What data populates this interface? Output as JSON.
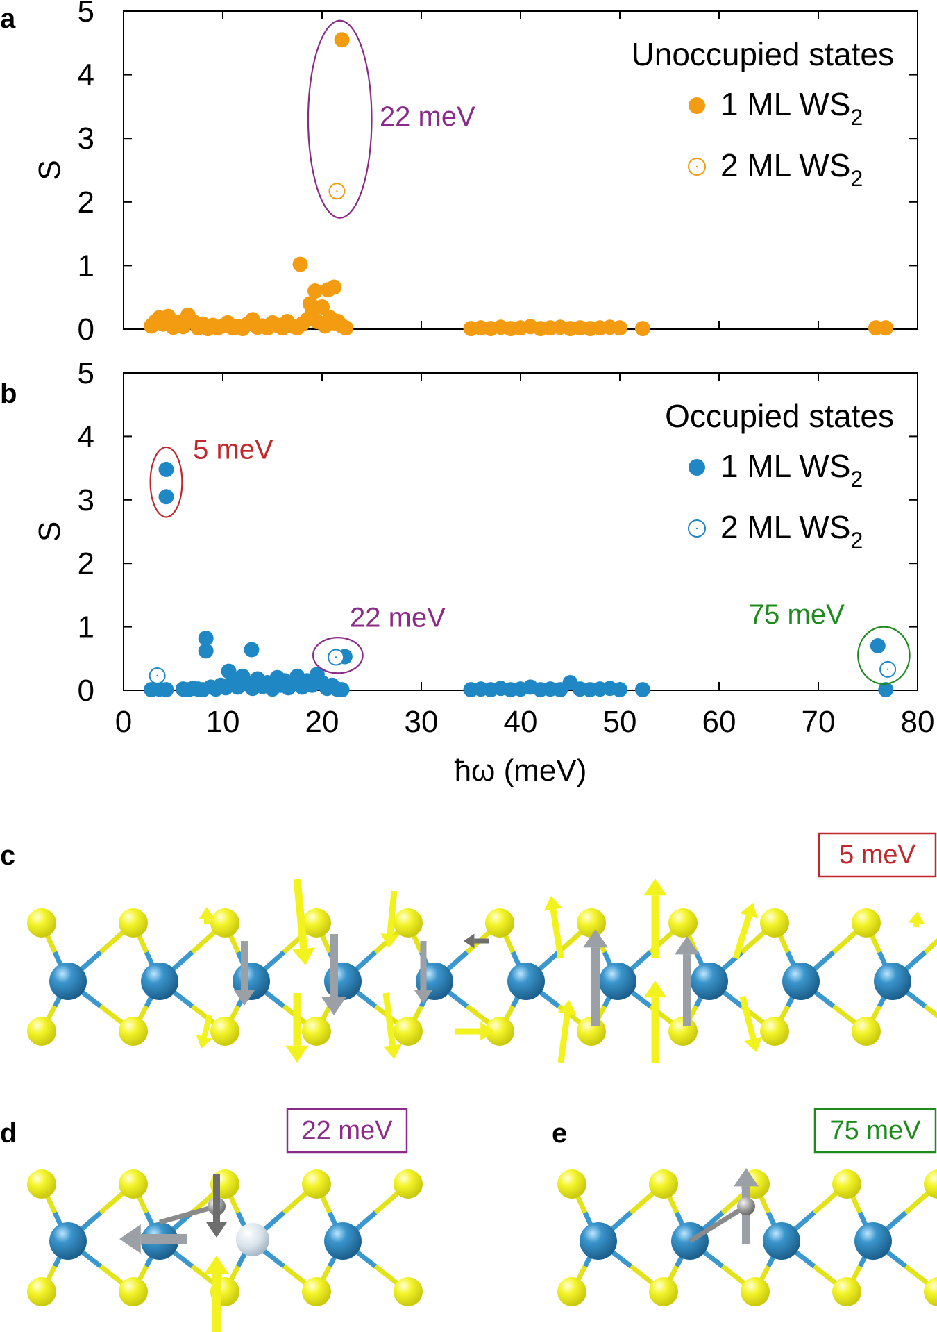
{
  "panel_letters": {
    "a": "a",
    "b": "b",
    "c": "c",
    "d": "d",
    "e": "e"
  },
  "colors": {
    "unoccupied": "#f39c12",
    "occupied": "#1f88c4",
    "purple": "#8a2b87",
    "red": "#c0282d",
    "green": "#1e8a1e",
    "tungsten": "#2a7fb4",
    "sulfur": "#f0f020",
    "bond_w": "#3a98cf",
    "bond_s": "#e3e31a",
    "arrow_gray": "#9aa0a6",
    "arrow_dark": "#6e6e6e",
    "arrow_yellow": "#f2f21e"
  },
  "chart_data": [
    {
      "type": "scatter",
      "panel": "a",
      "ylabel": "S",
      "xlim": [
        0,
        80
      ],
      "ylim": [
        0,
        5
      ],
      "xticks": [
        "0",
        "10",
        "20",
        "30",
        "40",
        "50",
        "60",
        "70",
        "80"
      ],
      "yticks": [
        "0",
        "1",
        "2",
        "3",
        "4",
        "5"
      ],
      "legend_title": "Unoccupied states",
      "legend_placement": "top-right",
      "series": [
        {
          "name": "1 ML WS",
          "sub": "2",
          "marker": "filled",
          "points": [
            [
              2.8,
              0.05
            ],
            [
              3.2,
              0.12
            ],
            [
              3.6,
              0.18
            ],
            [
              4.0,
              0.08
            ],
            [
              4.5,
              0.2
            ],
            [
              5.0,
              0.03
            ],
            [
              5.5,
              0.1
            ],
            [
              6.0,
              0.04
            ],
            [
              6.5,
              0.22
            ],
            [
              7.0,
              0.12
            ],
            [
              7.5,
              0.02
            ],
            [
              8.0,
              0.08
            ],
            [
              8.5,
              0.01
            ],
            [
              9.0,
              0.06
            ],
            [
              9.5,
              0.02
            ],
            [
              10.0,
              0.05
            ],
            [
              10.5,
              0.1
            ],
            [
              11.0,
              0.02
            ],
            [
              11.5,
              0.04
            ],
            [
              12.0,
              0.01
            ],
            [
              12.5,
              0.08
            ],
            [
              13.0,
              0.15
            ],
            [
              13.5,
              0.03
            ],
            [
              14.0,
              0.05
            ],
            [
              14.5,
              0.02
            ],
            [
              15.0,
              0.1
            ],
            [
              15.5,
              0.06
            ],
            [
              16.0,
              0.02
            ],
            [
              16.5,
              0.12
            ],
            [
              17.0,
              0.05
            ],
            [
              17.5,
              0.02
            ],
            [
              18.0,
              0.08
            ],
            [
              18.5,
              0.15
            ],
            [
              19.0,
              0.25
            ],
            [
              19.5,
              0.12
            ],
            [
              20.0,
              0.35
            ],
            [
              20.3,
              0.05
            ],
            [
              20.8,
              0.18
            ],
            [
              21.2,
              0.1
            ],
            [
              21.6,
              0.12
            ],
            [
              22.0,
              0.05
            ],
            [
              22.4,
              0.02
            ],
            [
              17.8,
              1.02
            ],
            [
              18.8,
              0.4
            ],
            [
              19.3,
              0.6
            ],
            [
              20.6,
              0.62
            ],
            [
              21.2,
              0.66
            ],
            [
              22.0,
              4.55
            ],
            [
              35.0,
              0.01
            ],
            [
              36.0,
              0.02
            ],
            [
              37.0,
              0.01
            ],
            [
              38.0,
              0.03
            ],
            [
              39.0,
              0.01
            ],
            [
              40.0,
              0.02
            ],
            [
              41.0,
              0.04
            ],
            [
              42.0,
              0.01
            ],
            [
              43.0,
              0.02
            ],
            [
              44.0,
              0.03
            ],
            [
              45.0,
              0.01
            ],
            [
              46.0,
              0.02
            ],
            [
              47.0,
              0.01
            ],
            [
              48.0,
              0.02
            ],
            [
              49.0,
              0.03
            ],
            [
              50.0,
              0.02
            ],
            [
              52.3,
              0.01
            ],
            [
              75.8,
              0.02
            ],
            [
              76.8,
              0.02
            ]
          ]
        },
        {
          "name": "2 ML WS",
          "sub": "2",
          "marker": "open",
          "points": [
            [
              21.5,
              2.17
            ]
          ]
        }
      ],
      "annotations": [
        {
          "text": "22 meV",
          "color": "purple",
          "x": 21.8,
          "y": 3.3,
          "rx": 3.2,
          "ry": 1.55,
          "label_x": 25.8,
          "label_y": 3.2
        }
      ]
    },
    {
      "type": "scatter",
      "panel": "b",
      "ylabel": "S",
      "xlabel": "ħω (meV)",
      "xlim": [
        0,
        80
      ],
      "ylim": [
        0,
        5
      ],
      "xticks": [
        "0",
        "10",
        "20",
        "30",
        "40",
        "50",
        "60",
        "70",
        "80"
      ],
      "yticks": [
        "0",
        "1",
        "2",
        "3",
        "4",
        "5"
      ],
      "legend_title": "Occupied states",
      "legend_placement": "top-right",
      "series": [
        {
          "name": "1 ML WS",
          "sub": "2",
          "marker": "filled",
          "points": [
            [
              2.8,
              0.01
            ],
            [
              3.6,
              0.02
            ],
            [
              4.3,
              0.01
            ],
            [
              4.3,
              3.48
            ],
            [
              4.3,
              3.05
            ],
            [
              6.0,
              0.02
            ],
            [
              6.5,
              0.01
            ],
            [
              7.0,
              0.03
            ],
            [
              7.5,
              0.02
            ],
            [
              8.0,
              0.01
            ],
            [
              8.3,
              0.82
            ],
            [
              8.3,
              0.62
            ],
            [
              8.8,
              0.05
            ],
            [
              9.3,
              0.02
            ],
            [
              9.8,
              0.08
            ],
            [
              10.3,
              0.04
            ],
            [
              10.6,
              0.3
            ],
            [
              11.0,
              0.12
            ],
            [
              11.5,
              0.05
            ],
            [
              12.0,
              0.22
            ],
            [
              12.5,
              0.1
            ],
            [
              12.9,
              0.64
            ],
            [
              13.0,
              0.03
            ],
            [
              13.5,
              0.18
            ],
            [
              14.0,
              0.06
            ],
            [
              14.5,
              0.12
            ],
            [
              15.0,
              0.02
            ],
            [
              15.5,
              0.2
            ],
            [
              15.8,
              0.08
            ],
            [
              16.2,
              0.15
            ],
            [
              16.6,
              0.04
            ],
            [
              17.0,
              0.1
            ],
            [
              17.5,
              0.22
            ],
            [
              18.0,
              0.05
            ],
            [
              18.5,
              0.15
            ],
            [
              19.0,
              0.08
            ],
            [
              19.5,
              0.25
            ],
            [
              20.0,
              0.12
            ],
            [
              20.5,
              0.03
            ],
            [
              21.0,
              0.08
            ],
            [
              21.5,
              0.02
            ],
            [
              22.0,
              0.01
            ],
            [
              22.3,
              0.53
            ],
            [
              35.0,
              0.01
            ],
            [
              36.0,
              0.02
            ],
            [
              37.0,
              0.01
            ],
            [
              38.0,
              0.03
            ],
            [
              39.0,
              0.01
            ],
            [
              40.0,
              0.02
            ],
            [
              41.0,
              0.05
            ],
            [
              42.0,
              0.01
            ],
            [
              43.0,
              0.02
            ],
            [
              44.0,
              0.01
            ],
            [
              45.0,
              0.12
            ],
            [
              46.0,
              0.02
            ],
            [
              47.0,
              0.01
            ],
            [
              48.0,
              0.02
            ],
            [
              49.0,
              0.03
            ],
            [
              50.0,
              0.01
            ],
            [
              52.3,
              0.01
            ],
            [
              76.0,
              0.7
            ],
            [
              76.8,
              0.01
            ]
          ]
        },
        {
          "name": "2 ML WS",
          "sub": "2",
          "marker": "open",
          "points": [
            [
              3.4,
              0.23
            ],
            [
              21.4,
              0.52
            ],
            [
              77.0,
              0.33
            ]
          ]
        }
      ],
      "annotations": [
        {
          "text": "5 meV",
          "color": "red",
          "x": 4.3,
          "y": 3.28,
          "rx": 1.6,
          "ry": 0.55,
          "label_x": 7.0,
          "label_y": 3.65
        },
        {
          "text": "22 meV",
          "color": "purple",
          "x": 21.6,
          "y": 0.55,
          "rx": 2.5,
          "ry": 0.28,
          "label_x": 22.8,
          "label_y": 1.0
        },
        {
          "text": "75 meV",
          "color": "green",
          "x": 76.6,
          "y": 0.55,
          "rx": 2.6,
          "ry": 0.45,
          "label_x": 63.0,
          "label_y": 1.05
        }
      ]
    }
  ],
  "structures": {
    "c": {
      "label": "5 meV",
      "color": "red"
    },
    "d": {
      "label": "22 meV",
      "color": "purple"
    },
    "e": {
      "label": "75 meV",
      "color": "green"
    }
  }
}
